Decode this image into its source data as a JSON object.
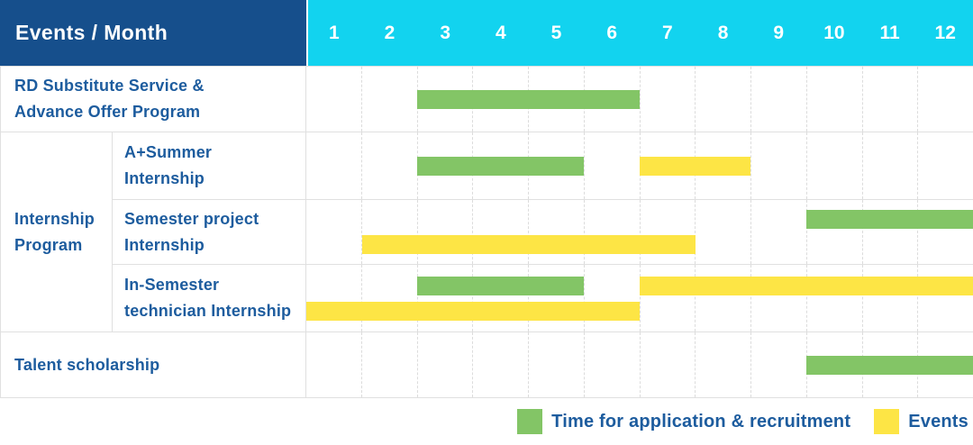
{
  "header": {
    "title": "Events / Month"
  },
  "colors": {
    "header_bg": "#164F8C",
    "month_header_bg": "#12D3EF",
    "header_text": "#FFFFFF",
    "label_text": "#1D5C9E",
    "application_bar": "#83C566",
    "events_bar": "#FDE545",
    "row_line": "#E0E0E0",
    "month_gridline": "#DCDCDC"
  },
  "chart_data": {
    "type": "bar",
    "subtype": "gantt-schedule",
    "title": "Events / Month",
    "x_categories": [
      1,
      2,
      3,
      4,
      5,
      6,
      7,
      8,
      9,
      10,
      11,
      12
    ],
    "x_unit": "month",
    "x_range": [
      1,
      12
    ],
    "grid": "dashed-vertical-month-lines",
    "legend_position": "bottom-right",
    "legend": [
      {
        "kind": "application",
        "label": "Time for application & recruitment",
        "color": "#83C566"
      },
      {
        "kind": "events",
        "label": "Events",
        "color": "#FDE545"
      }
    ],
    "group_label": {
      "lines": [
        "Internship",
        "Program"
      ],
      "member_row_indexes": [
        1,
        2,
        3
      ]
    },
    "rows": [
      {
        "lines": [
          "RD Substitute Service &",
          "Advance Offer Program"
        ],
        "group": null,
        "bars": [
          {
            "kind": "application",
            "start_month": 3,
            "end_month": 6,
            "lane": 0
          }
        ]
      },
      {
        "lines": [
          "A+Summer",
          "Internship"
        ],
        "group": "Internship Program",
        "bars": [
          {
            "kind": "application",
            "start_month": 3,
            "end_month": 5,
            "lane": 0
          },
          {
            "kind": "events",
            "start_month": 7,
            "end_month": 8,
            "lane": 0
          }
        ]
      },
      {
        "lines": [
          "Semester project",
          "Internship"
        ],
        "group": "Internship Program",
        "bars": [
          {
            "kind": "application",
            "start_month": 10,
            "end_month": 12,
            "lane": 0
          },
          {
            "kind": "events",
            "start_month": 2,
            "end_month": 7,
            "lane": 1
          }
        ]
      },
      {
        "lines": [
          "In-Semester",
          "technician Internship"
        ],
        "group": "Internship Program",
        "bars": [
          {
            "kind": "application",
            "start_month": 3,
            "end_month": 5,
            "lane": 0
          },
          {
            "kind": "events",
            "start_month": 7,
            "end_month": 12,
            "lane": 0
          },
          {
            "kind": "events",
            "start_month": 1,
            "end_month": 6,
            "lane": 1
          }
        ]
      },
      {
        "lines": [
          "Talent scholarship"
        ],
        "group": null,
        "bars": [
          {
            "kind": "application",
            "start_month": 10,
            "end_month": 12,
            "lane": 0
          }
        ]
      }
    ]
  }
}
